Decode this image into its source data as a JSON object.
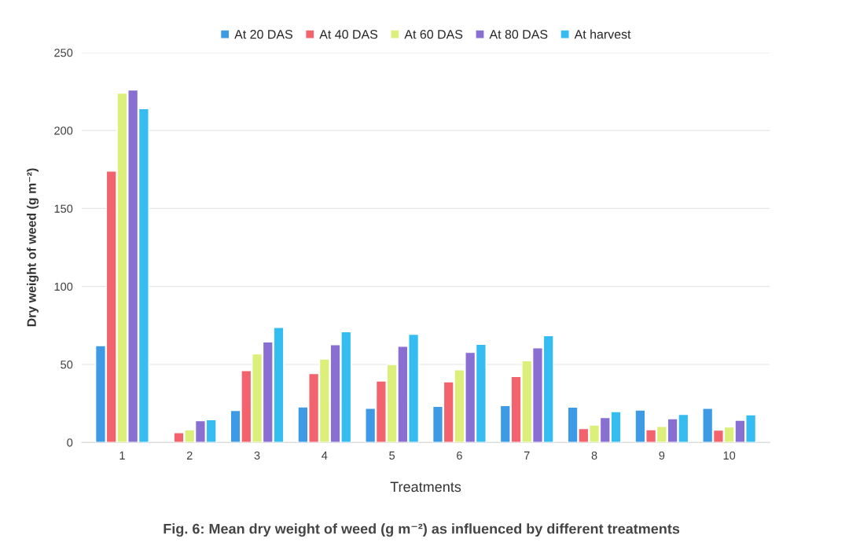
{
  "chart_data": {
    "type": "bar",
    "title": "Fig. 6: Mean dry weight of weed (g m⁻²) as influenced by different treatments",
    "xlabel": "Treatments",
    "ylabel": "Dry weight of weed (g m⁻²)",
    "categories": [
      "1",
      "2",
      "3",
      "4",
      "5",
      "6",
      "7",
      "8",
      "9",
      "10"
    ],
    "series": [
      {
        "name": "At 20 DAS",
        "color": "#3d9be6",
        "values": [
          62,
          null,
          20.5,
          22.8,
          21.8,
          23.1,
          23.6,
          22.6,
          20.7,
          21.8
        ]
      },
      {
        "name": "At 40 DAS",
        "color": "#f2636d",
        "values": [
          174,
          6.2,
          46,
          44.1,
          39.4,
          38.8,
          42.2,
          8.9,
          8.1,
          7.9
        ]
      },
      {
        "name": "At 60 DAS",
        "color": "#dcef7a",
        "values": [
          224,
          8,
          56.7,
          53.5,
          50,
          46.5,
          52.3,
          11.1,
          10.3,
          9.9
        ]
      },
      {
        "name": "At 80 DAS",
        "color": "#8a6fd2",
        "values": [
          226,
          13.9,
          64.4,
          62.6,
          61.7,
          57.8,
          60.7,
          16,
          15.2,
          14.2
        ]
      },
      {
        "name": "At harvest",
        "color": "#35bcf0",
        "values": [
          214,
          14.6,
          73.7,
          71,
          69.3,
          62.9,
          68.5,
          19.7,
          18,
          17.7
        ]
      }
    ],
    "ylim": [
      0,
      250
    ],
    "yticks": [
      0,
      50,
      100,
      150,
      200,
      250
    ],
    "grid": "y",
    "legend": "top"
  }
}
